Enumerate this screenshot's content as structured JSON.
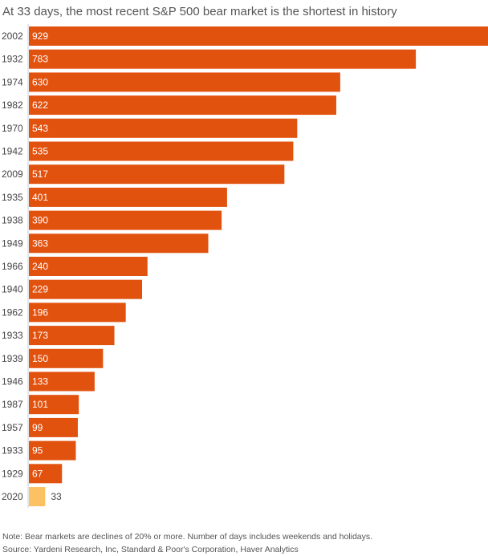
{
  "title": "At 33 days, the most recent S&P 500 bear market is the shortest in history",
  "note": "Note: Bear markets are declines of 20% or more. Number of days includes weekends and holidays.",
  "source": "Source: Yardeni Research, Inc, Standard & Poor's Corporation, Haver Analytics",
  "colors": {
    "bar": "#e2520f",
    "highlight": "#fbc163",
    "label_inside": "#ffffff",
    "label_outside": "#444444",
    "category": "#444444",
    "axis_line": "#cccccc"
  },
  "chart_data": {
    "type": "bar",
    "orientation": "horizontal",
    "categories": [
      "2002",
      "1932",
      "1974",
      "1982",
      "1970",
      "1942",
      "2009",
      "1935",
      "1938",
      "1949",
      "1966",
      "1940",
      "1962",
      "1933",
      "1939",
      "1946",
      "1987",
      "1957",
      "1933",
      "1929",
      "2020"
    ],
    "values": [
      929,
      783,
      630,
      622,
      543,
      535,
      517,
      401,
      390,
      363,
      240,
      229,
      196,
      173,
      150,
      133,
      101,
      99,
      95,
      67,
      33
    ],
    "highlight_category_index": 20,
    "value_unit": "days",
    "grid": false,
    "legend": "none"
  }
}
